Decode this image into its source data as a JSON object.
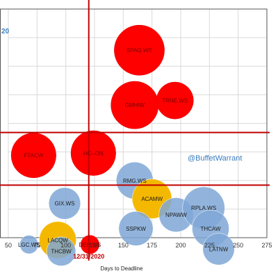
{
  "chart_data": {
    "type": "bubble",
    "xlabel": "Days to Deadline",
    "ylabel": "",
    "xlim": [
      50,
      275
    ],
    "ylim": [
      0,
      100
    ],
    "x_ticks": [
      "50",
      "75",
      "100",
      "125",
      "150",
      "175",
      "200",
      "225",
      "250",
      "275"
    ],
    "gridlines": true,
    "reference_lines": {
      "vertical_x": 120,
      "vertical_label": "12/31/2020",
      "horizontal_y": [
        46,
        23
      ]
    },
    "watermark": "@BuffetWarrant",
    "partial_title_fragment": "20",
    "colors": {
      "red": "#ff0000",
      "blue": "#7fa7d6",
      "gold": "#f5b800",
      "line": "#c00000",
      "watermark": "#3a7dbf"
    },
    "bubbles": [
      {
        "label": "SPAQ.WS",
        "x": 164,
        "y": 82,
        "r": 19,
        "color": "red"
      },
      {
        "label": "GMHIW",
        "x": 160,
        "y": 58,
        "r": 18,
        "color": "red"
      },
      {
        "label": "TRNE.WS",
        "x": 195,
        "y": 60,
        "r": 14,
        "color": "red"
      },
      {
        "label": "FTACW",
        "x": 72,
        "y": 36,
        "r": 17,
        "color": "red"
      },
      {
        "label": "HC--ON",
        "x": 124,
        "y": 37,
        "r": 17,
        "color": "red"
      },
      {
        "label": "RMG.WS",
        "x": 160,
        "y": 25,
        "r": 14,
        "color": "blue"
      },
      {
        "label": "ACAMW",
        "x": 175,
        "y": 17,
        "r": 15,
        "color": "gold"
      },
      {
        "label": "GIX.WS",
        "x": 99,
        "y": 15,
        "r": 12,
        "color": "blue"
      },
      {
        "label": "NPAWW",
        "x": 196,
        "y": 10,
        "r": 13,
        "color": "blue"
      },
      {
        "label": "RPLA.WS",
        "x": 220,
        "y": 13,
        "r": 16,
        "color": "blue"
      },
      {
        "label": "SSPKW",
        "x": 161,
        "y": 4,
        "r": 13,
        "color": "blue"
      },
      {
        "label": "THCAW",
        "x": 226,
        "y": 4,
        "r": 14,
        "color": "blue"
      },
      {
        "label": "LATNW",
        "x": 233,
        "y": -5,
        "r": 12,
        "color": "blue"
      },
      {
        "label": "LACQW",
        "x": 93,
        "y": -1,
        "r": 14,
        "color": "gold"
      },
      {
        "label": "THCBW",
        "x": 96,
        "y": -6,
        "r": 11,
        "color": "blue"
      },
      {
        "label": "LGC.WS",
        "x": 68,
        "y": -3,
        "r": 7,
        "color": "blue"
      },
      {
        "label": "DEH.WS",
        "x": 121,
        "y": -3,
        "r": 7,
        "color": "red"
      }
    ]
  }
}
